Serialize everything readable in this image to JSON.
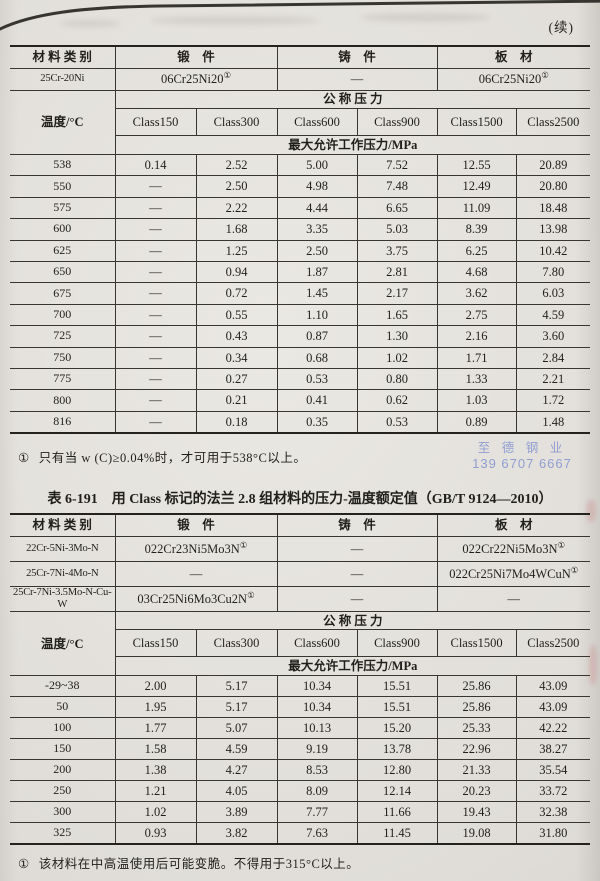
{
  "page": {
    "continued": "(续)",
    "footnote1": "只有当 w (C)≥0.04%时，才可用于538°C以上。",
    "footnote_mark": "①",
    "table2_title": "表 6-191　用 Class 标记的法兰 2.8 组材料的压力-温度额定值（GB/T 9124—2010）",
    "footnote2": "该材料在中高温使用后可能变脆。不得用于315°C以上。",
    "watermark": {
      "line1": "至 德 钢 业",
      "line2": "139 6707 6667",
      "color": "#8292d0"
    }
  },
  "labels": {
    "material_category": "材 料 类 别",
    "forging": "锻　件",
    "casting": "铸　件",
    "plate": "板　材",
    "nominal_pressure": "公 称 压 力",
    "temperature": "温度/°C",
    "max_working_pressure": "最大允许工作压力/MPa",
    "classes": [
      "Class150",
      "Class300",
      "Class600",
      "Class900",
      "Class1500",
      "Class2500"
    ]
  },
  "table1": {
    "materials": [
      [
        "25Cr-20Ni",
        "06Cr25Ni20①",
        "—",
        "06Cr25Ni20①"
      ]
    ],
    "rows": [
      [
        "538",
        "0.14",
        "2.52",
        "5.00",
        "7.52",
        "12.55",
        "20.89"
      ],
      [
        "550",
        "—",
        "2.50",
        "4.98",
        "7.48",
        "12.49",
        "20.80"
      ],
      [
        "575",
        "—",
        "2.22",
        "4.44",
        "6.65",
        "11.09",
        "18.48"
      ],
      [
        "600",
        "—",
        "1.68",
        "3.35",
        "5.03",
        "8.39",
        "13.98"
      ],
      [
        "625",
        "—",
        "1.25",
        "2.50",
        "3.75",
        "6.25",
        "10.42"
      ],
      [
        "650",
        "—",
        "0.94",
        "1.87",
        "2.81",
        "4.68",
        "7.80"
      ],
      [
        "675",
        "—",
        "0.72",
        "1.45",
        "2.17",
        "3.62",
        "6.03"
      ],
      [
        "700",
        "—",
        "0.55",
        "1.10",
        "1.65",
        "2.75",
        "4.59"
      ],
      [
        "725",
        "—",
        "0.43",
        "0.87",
        "1.30",
        "2.16",
        "3.60"
      ],
      [
        "750",
        "—",
        "0.34",
        "0.68",
        "1.02",
        "1.71",
        "2.84"
      ],
      [
        "775",
        "—",
        "0.27",
        "0.53",
        "0.80",
        "1.33",
        "2.21"
      ],
      [
        "800",
        "—",
        "0.21",
        "0.41",
        "0.62",
        "1.03",
        "1.72"
      ],
      [
        "816",
        "—",
        "0.18",
        "0.35",
        "0.53",
        "0.89",
        "1.48"
      ]
    ]
  },
  "table2": {
    "materials": [
      [
        "22Cr-5Ni-3Mo-N",
        "022Cr23Ni5Mo3N①",
        "—",
        "022Cr22Ni5Mo3N①"
      ],
      [
        "25Cr-7Ni-4Mo-N",
        "—",
        "—",
        "022Cr25Ni7Mo4WCuN①"
      ],
      [
        "25Cr-7Ni-3.5Mo-N-Cu-W",
        "03Cr25Ni6Mo3Cu2N①",
        "—",
        "—"
      ]
    ],
    "rows": [
      [
        "-29~38",
        "2.00",
        "5.17",
        "10.34",
        "15.51",
        "25.86",
        "43.09"
      ],
      [
        "50",
        "1.95",
        "5.17",
        "10.34",
        "15.51",
        "25.86",
        "43.09"
      ],
      [
        "100",
        "1.77",
        "5.07",
        "10.13",
        "15.20",
        "25.33",
        "42.22"
      ],
      [
        "150",
        "1.58",
        "4.59",
        "9.19",
        "13.78",
        "22.96",
        "38.27"
      ],
      [
        "200",
        "1.38",
        "4.27",
        "8.53",
        "12.80",
        "21.33",
        "35.54"
      ],
      [
        "250",
        "1.21",
        "4.05",
        "8.09",
        "12.14",
        "20.23",
        "33.72"
      ],
      [
        "300",
        "1.02",
        "3.89",
        "7.77",
        "11.66",
        "19.43",
        "32.38"
      ],
      [
        "325",
        "0.93",
        "3.82",
        "7.63",
        "11.45",
        "19.08",
        "31.80"
      ]
    ]
  }
}
